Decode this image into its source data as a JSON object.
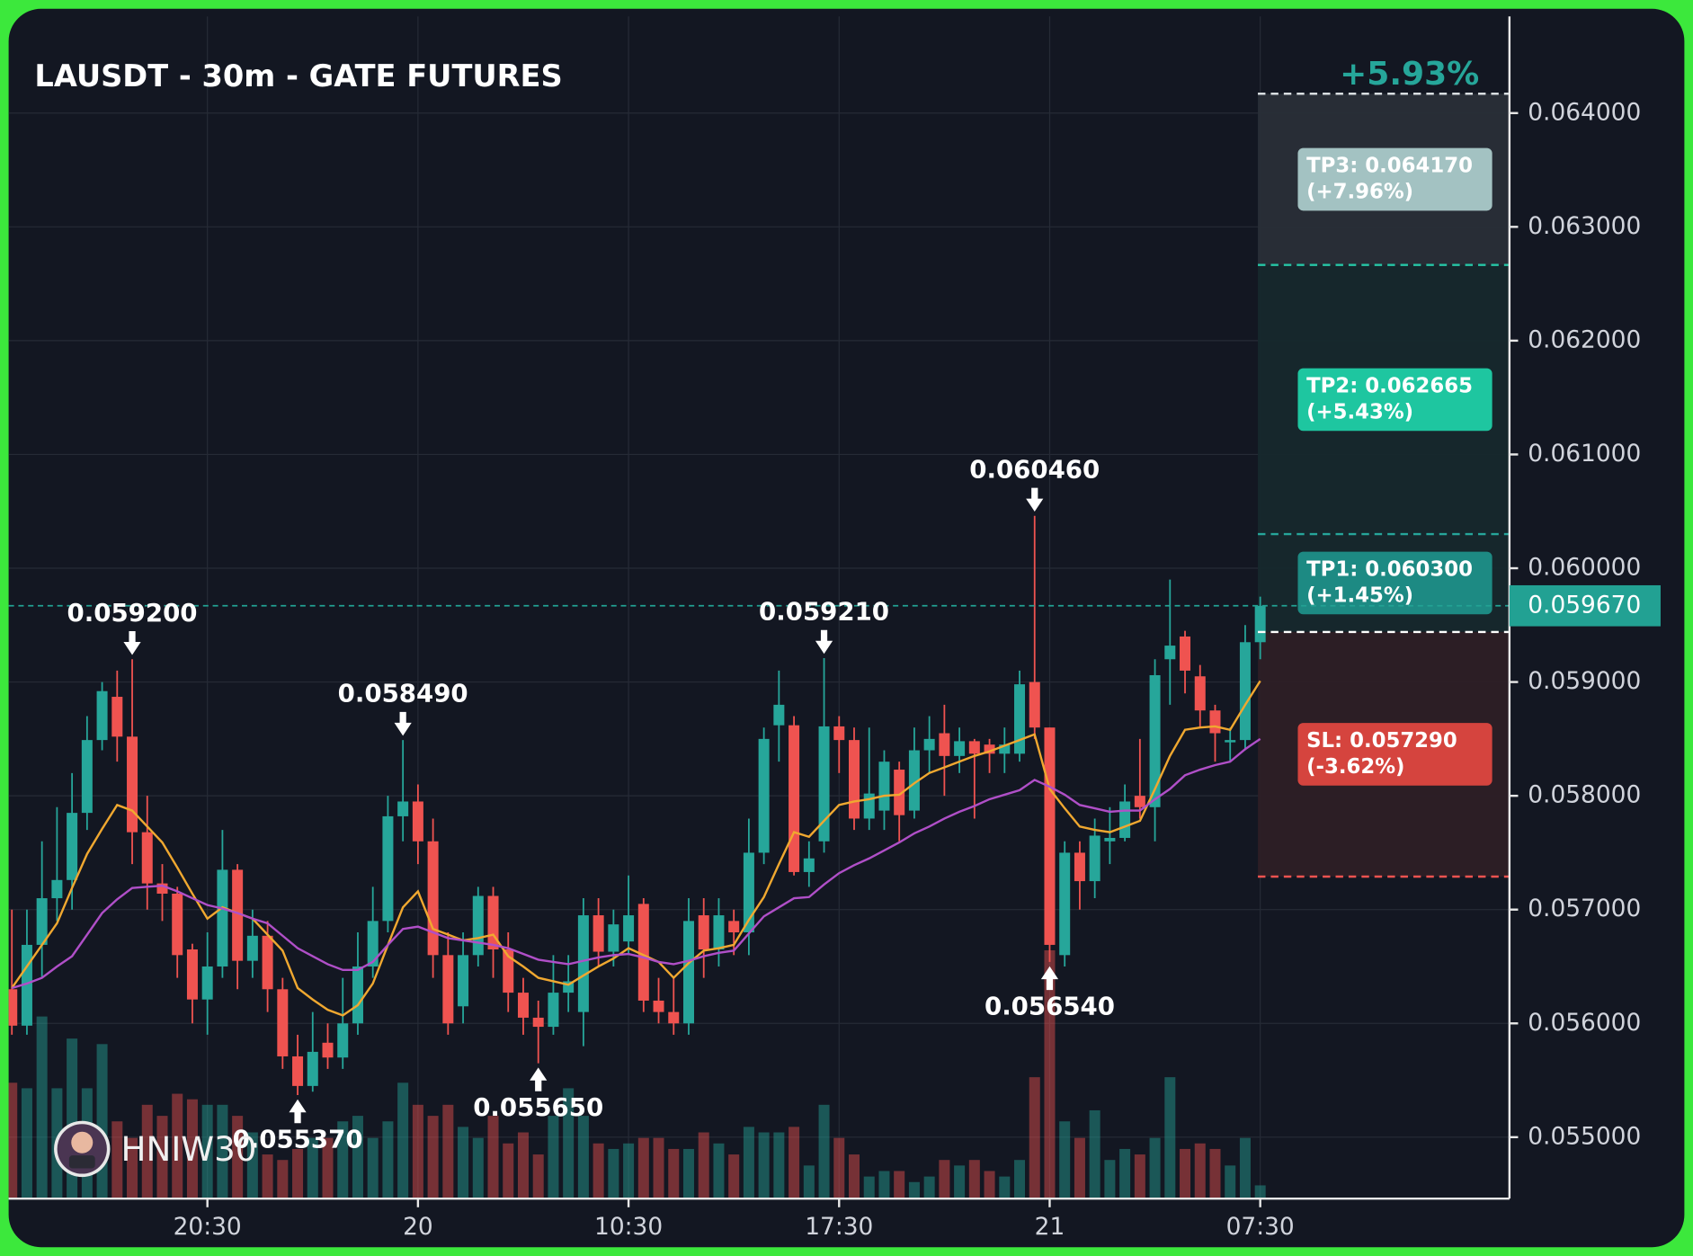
{
  "chart_data": {
    "type": "candlestick",
    "title": "LAUSDT - 30m - GATE FUTURES",
    "watermark": "HNIW30",
    "categories": [
      null,
      null,
      null,
      null,
      null,
      null,
      null,
      null,
      null,
      null,
      null,
      null,
      null,
      "20:30",
      null,
      null,
      null,
      null,
      null,
      null,
      null,
      null,
      null,
      null,
      null,
      null,
      null,
      "20",
      null,
      null,
      null,
      null,
      null,
      null,
      null,
      null,
      null,
      null,
      null,
      null,
      null,
      "10:30",
      null,
      null,
      null,
      null,
      null,
      null,
      null,
      null,
      null,
      null,
      null,
      null,
      null,
      "17:30",
      null,
      null,
      null,
      null,
      null,
      null,
      null,
      null,
      null,
      null,
      null,
      null,
      null,
      "21",
      null,
      null,
      null,
      null,
      null,
      null,
      null,
      null,
      null,
      null,
      null,
      null,
      null,
      "07:30"
    ],
    "open": [
      0.0563,
      0.05598,
      0.05669,
      0.0571,
      0.05726,
      0.05785,
      0.05849,
      0.05887,
      0.05852,
      0.05768,
      0.05723,
      0.05714,
      0.05665,
      0.05621,
      0.0565,
      0.05735,
      0.05655,
      0.05677,
      0.0563,
      0.05571,
      0.05545,
      0.05583,
      0.0557,
      0.056,
      0.0565,
      0.0569,
      0.05782,
      0.05795,
      0.0576,
      0.0566,
      0.05615,
      0.0566,
      0.05712,
      0.05665,
      0.05627,
      0.05605,
      0.05597,
      0.05627,
      0.0561,
      0.05695,
      0.05663,
      0.05672,
      0.05705,
      0.0562,
      0.0561,
      0.056,
      0.05695,
      0.05665,
      0.0569,
      0.0568,
      0.0575,
      0.05862,
      0.05862,
      0.05733,
      0.0576,
      0.05861,
      0.05849,
      0.0578,
      0.05787,
      0.05823,
      0.05787,
      0.0584,
      0.05855,
      0.05835,
      0.05848,
      0.05845,
      0.05837,
      0.05837,
      0.059,
      0.0586,
      0.0566,
      0.0575,
      0.05725,
      0.0576,
      0.05763,
      0.058,
      0.0579,
      0.0592,
      0.0594,
      0.05905,
      0.05875,
      0.05847,
      0.05849,
      0.05935
    ],
    "high": [
      0.057,
      0.057,
      0.0576,
      0.0579,
      0.0582,
      0.0587,
      0.059,
      0.0591,
      0.0592,
      0.058,
      0.0574,
      0.0572,
      0.0567,
      0.0568,
      0.0577,
      0.0574,
      0.057,
      0.0569,
      0.0564,
      0.0559,
      0.0561,
      0.056,
      0.0564,
      0.0568,
      0.0572,
      0.058,
      0.05849,
      0.0581,
      0.0578,
      0.0568,
      0.0568,
      0.0572,
      0.0572,
      0.0568,
      0.0564,
      0.0562,
      0.0566,
      0.0566,
      0.0571,
      0.0571,
      0.057,
      0.0573,
      0.0571,
      0.0564,
      0.0564,
      0.0571,
      0.0571,
      0.0571,
      0.057,
      0.0578,
      0.0586,
      0.0591,
      0.0587,
      0.0576,
      0.05921,
      0.0587,
      0.0586,
      0.0586,
      0.0584,
      0.0583,
      0.0586,
      0.0587,
      0.0588,
      0.0586,
      0.0585,
      0.0585,
      0.0586,
      0.0591,
      0.06046,
      0.0586,
      0.0576,
      0.0576,
      0.0578,
      0.0579,
      0.0581,
      0.0585,
      0.0592,
      0.0599,
      0.05945,
      0.05915,
      0.0588,
      0.0586,
      0.0595,
      0.05975
    ],
    "low": [
      0.0559,
      0.0559,
      0.0564,
      0.0569,
      0.057,
      0.0577,
      0.0584,
      0.0583,
      0.0574,
      0.057,
      0.0569,
      0.0564,
      0.056,
      0.0559,
      0.0564,
      0.0563,
      0.0564,
      0.0561,
      0.0556,
      0.05537,
      0.0554,
      0.0556,
      0.0556,
      0.0559,
      0.0564,
      0.0568,
      0.0576,
      0.0574,
      0.0564,
      0.0559,
      0.056,
      0.0565,
      0.0564,
      0.0561,
      0.0559,
      0.05565,
      0.0559,
      0.0561,
      0.0558,
      0.0565,
      0.0565,
      0.0566,
      0.0561,
      0.056,
      0.0559,
      0.0559,
      0.0564,
      0.0565,
      0.0566,
      0.0566,
      0.0574,
      0.0583,
      0.0573,
      0.0572,
      0.0575,
      0.0582,
      0.0577,
      0.0577,
      0.0577,
      0.0576,
      0.0578,
      0.0582,
      0.058,
      0.0582,
      0.0578,
      0.0582,
      0.0582,
      0.0583,
      0.0585,
      0.05654,
      0.0565,
      0.057,
      0.0571,
      0.0574,
      0.0576,
      0.0578,
      0.0576,
      0.0588,
      0.0589,
      0.0586,
      0.0583,
      0.0583,
      0.0584,
      0.0592
    ],
    "close": [
      0.05598,
      0.05669,
      0.0571,
      0.05726,
      0.05785,
      0.05849,
      0.05892,
      0.05852,
      0.05768,
      0.05723,
      0.05714,
      0.0566,
      0.05621,
      0.0565,
      0.05735,
      0.05655,
      0.05677,
      0.0563,
      0.05571,
      0.05545,
      0.05575,
      0.0557,
      0.056,
      0.0565,
      0.0569,
      0.05782,
      0.05795,
      0.0576,
      0.0566,
      0.056,
      0.0566,
      0.05712,
      0.05665,
      0.05627,
      0.05605,
      0.05597,
      0.05627,
      0.05637,
      0.05695,
      0.05663,
      0.05687,
      0.05695,
      0.0562,
      0.0561,
      0.056,
      0.0569,
      0.05665,
      0.05695,
      0.0568,
      0.0575,
      0.0585,
      0.0588,
      0.05733,
      0.05745,
      0.05861,
      0.05849,
      0.0578,
      0.05802,
      0.0583,
      0.05783,
      0.0584,
      0.0585,
      0.05835,
      0.05848,
      0.05837,
      0.05837,
      0.05845,
      0.05898,
      0.0586,
      0.05669,
      0.0575,
      0.05725,
      0.05765,
      0.05763,
      0.05795,
      0.0579,
      0.05906,
      0.05932,
      0.0591,
      0.05875,
      0.05855,
      0.05849,
      0.05935,
      0.05967
    ],
    "volume": [
      105,
      100,
      165,
      100,
      145,
      100,
      140,
      70,
      55,
      85,
      75,
      95,
      90,
      85,
      85,
      75,
      60,
      40,
      35,
      45,
      55,
      55,
      70,
      75,
      55,
      70,
      105,
      85,
      75,
      85,
      65,
      55,
      75,
      50,
      60,
      40,
      75,
      100,
      75,
      50,
      45,
      50,
      55,
      55,
      45,
      45,
      60,
      50,
      40,
      65,
      60,
      60,
      65,
      30,
      85,
      55,
      40,
      20,
      25,
      25,
      15,
      20,
      35,
      30,
      35,
      25,
      20,
      35,
      110,
      225,
      70,
      55,
      80,
      35,
      45,
      40,
      55,
      110,
      45,
      50,
      45,
      30,
      55,
      12
    ],
    "up_color": "#26a69a",
    "down_color": "#ef5350",
    "lines": [
      {
        "color": "#f0a830",
        "values": [
          0.05631,
          0.0565,
          0.05669,
          0.05688,
          0.05719,
          0.05749,
          0.05771,
          0.05792,
          0.05787,
          0.05773,
          0.05759,
          0.05737,
          0.05714,
          0.05692,
          0.05702,
          0.05697,
          0.05692,
          0.05678,
          0.05664,
          0.05631,
          0.05621,
          0.05612,
          0.05607,
          0.05616,
          0.05635,
          0.05669,
          0.05702,
          0.05716,
          0.05683,
          0.05678,
          0.05673,
          0.05675,
          0.05678,
          0.05659,
          0.0565,
          0.0564,
          0.05637,
          0.05634,
          0.05642,
          0.0565,
          0.05657,
          0.05666,
          0.0566,
          0.05654,
          0.0564,
          0.05653,
          0.05664,
          0.05666,
          0.05669,
          0.05691,
          0.05711,
          0.0574,
          0.05768,
          0.05764,
          0.05778,
          0.05792,
          0.05795,
          0.05797,
          0.058,
          0.05801,
          0.05811,
          0.0582,
          0.05825,
          0.0583,
          0.05835,
          0.05839,
          0.05844,
          0.05849,
          0.05854,
          0.05806,
          0.05789,
          0.05773,
          0.0577,
          0.05768,
          0.05773,
          0.05778,
          0.05806,
          0.05835,
          0.05858,
          0.0586,
          0.05861,
          0.05858,
          0.0588,
          0.05901
        ]
      },
      {
        "color": "#b04fc8",
        "values": [
          0.05631,
          0.05635,
          0.0564,
          0.0565,
          0.05659,
          0.05678,
          0.05697,
          0.05709,
          0.05719,
          0.0572,
          0.05721,
          0.05716,
          0.0571,
          0.05704,
          0.05701,
          0.05697,
          0.05692,
          0.05688,
          0.05677,
          0.05666,
          0.05659,
          0.05652,
          0.05647,
          0.05647,
          0.05654,
          0.05669,
          0.05683,
          0.05685,
          0.0568,
          0.05675,
          0.05673,
          0.05671,
          0.05669,
          0.05666,
          0.05661,
          0.05656,
          0.05654,
          0.05652,
          0.05655,
          0.05658,
          0.0566,
          0.05661,
          0.05658,
          0.05654,
          0.05652,
          0.05655,
          0.05659,
          0.05662,
          0.05664,
          0.05679,
          0.05694,
          0.05702,
          0.0571,
          0.05711,
          0.05722,
          0.05732,
          0.05739,
          0.05745,
          0.05752,
          0.05759,
          0.05767,
          0.05773,
          0.0578,
          0.05786,
          0.05791,
          0.05797,
          0.05801,
          0.05805,
          0.05814,
          0.05808,
          0.05801,
          0.05792,
          0.05789,
          0.05786,
          0.05787,
          0.05787,
          0.05797,
          0.05806,
          0.05818,
          0.05823,
          0.05827,
          0.0583,
          0.05841,
          0.0585
        ]
      }
    ],
    "ylim": [
      0.05446,
      0.06485
    ],
    "yticks": [
      {
        "value": 0.055,
        "label": "0.055000"
      },
      {
        "value": 0.056,
        "label": "0.056000"
      },
      {
        "value": 0.057,
        "label": "0.057000"
      },
      {
        "value": 0.058,
        "label": "0.058000"
      },
      {
        "value": 0.059,
        "label": "0.059000"
      },
      {
        "value": 0.06,
        "label": "0.060000"
      },
      {
        "value": 0.061,
        "label": "0.061000"
      },
      {
        "value": 0.062,
        "label": "0.062000"
      },
      {
        "value": 0.063,
        "label": "0.063000"
      },
      {
        "value": 0.064,
        "label": "0.064000"
      }
    ],
    "grid": true,
    "last_price": {
      "value": 0.05967,
      "label": "0.059670",
      "color": "#22a193"
    },
    "annotations": [
      {
        "label": "0.059200",
        "value": 0.0592,
        "index": 8,
        "side": "above"
      },
      {
        "label": "0.058490",
        "value": 0.05849,
        "index": 26,
        "side": "above"
      },
      {
        "label": "0.055370",
        "value": 0.05537,
        "index": 19,
        "side": "below"
      },
      {
        "label": "0.055650",
        "value": 0.05565,
        "index": 35,
        "side": "below"
      },
      {
        "label": "0.059210",
        "value": 0.05921,
        "index": 54,
        "side": "above"
      },
      {
        "label": "0.060460",
        "value": 0.06046,
        "index": 68,
        "side": "above"
      },
      {
        "label": "0.056540",
        "value": 0.05654,
        "index": 69,
        "side": "below"
      }
    ],
    "trade": {
      "entry": 0.05944,
      "entry_color": "#ffffff",
      "headline": "+5.93%",
      "headline_color": "#26a69a",
      "levels": [
        {
          "label": "TP3: 0.064170",
          "change": "(+7.96%)",
          "value": 0.06417,
          "color": "#a3c2c2",
          "line_color": "#d8dde0",
          "zone_color": "#292e38"
        },
        {
          "label": "TP2: 0.062665",
          "change": "(+5.43%)",
          "value": 0.062665,
          "color": "#1ec6a0",
          "line_color": "#26c6a6",
          "zone_color": "#16282d"
        },
        {
          "label": "TP1: 0.060300",
          "change": "(+1.45%)",
          "value": 0.0603,
          "color": "#1d8a83",
          "line_color": "#26a69a",
          "zone_color": "#16282d"
        },
        {
          "label": "SL: 0.057290",
          "change": "(-3.62%)",
          "value": 0.05729,
          "color": "#d5443e",
          "line_color": "#ef5350",
          "zone_color": "#2d1f26"
        }
      ]
    }
  }
}
